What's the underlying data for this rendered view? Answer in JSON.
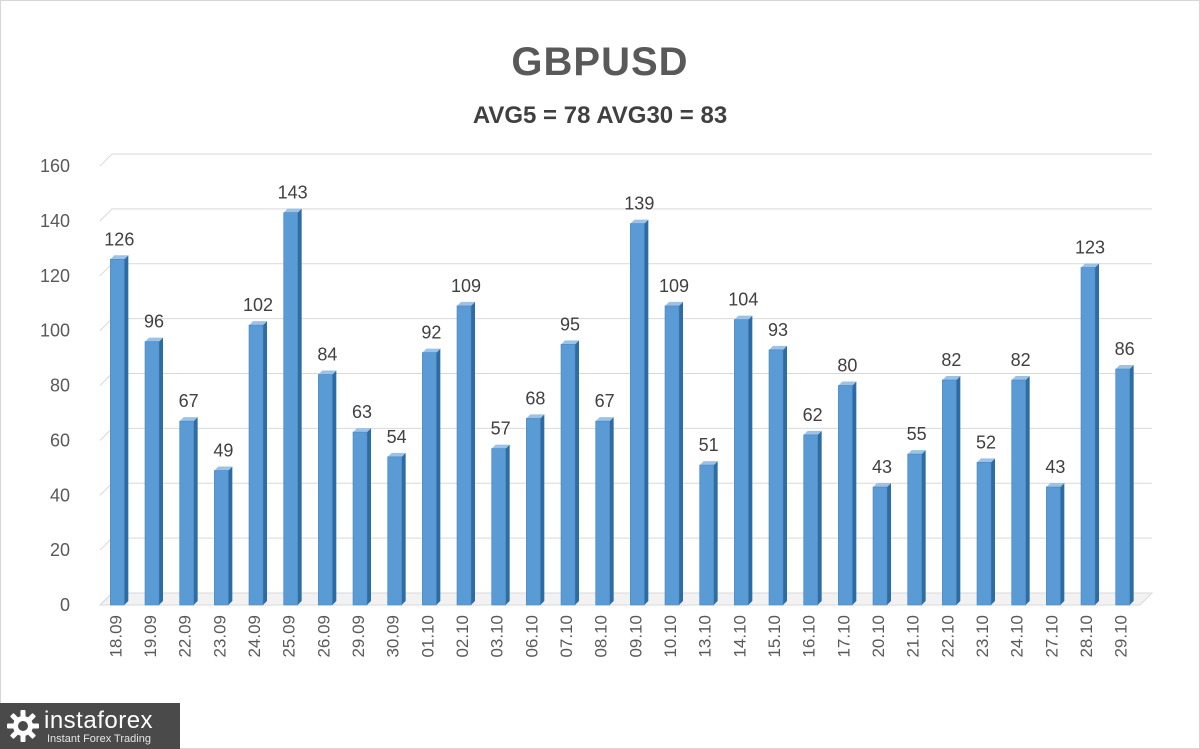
{
  "chart_data": {
    "type": "bar",
    "title": "GBPUSD",
    "subtitle": "AVG5 = 78 AVG30 = 83",
    "categories": [
      "18.09",
      "19.09",
      "22.09",
      "23.09",
      "24.09",
      "25.09",
      "26.09",
      "29.09",
      "30.09",
      "01.10",
      "02.10",
      "03.10",
      "06.10",
      "07.10",
      "08.10",
      "09.10",
      "10.10",
      "13.10",
      "14.10",
      "15.10",
      "16.10",
      "17.10",
      "20.10",
      "21.10",
      "22.10",
      "23.10",
      "24.10",
      "27.10",
      "28.10",
      "29.10"
    ],
    "values": [
      126,
      96,
      67,
      49,
      102,
      143,
      84,
      63,
      54,
      92,
      109,
      57,
      68,
      95,
      67,
      139,
      109,
      51,
      104,
      93,
      62,
      80,
      43,
      55,
      82,
      52,
      82,
      43,
      123,
      86
    ],
    "ylim": [
      0,
      160
    ],
    "yticks": [
      0,
      20,
      40,
      60,
      80,
      100,
      120,
      140,
      160
    ],
    "grid": true,
    "data_labels": true,
    "xlabel": "",
    "ylabel": "",
    "colors": {
      "bar_front": "#5b9bd5",
      "bar_side": "#2e6da4",
      "bar_top": "#9cc3e6",
      "grid": "#d9d9d9",
      "text": "#595959"
    }
  },
  "watermark": {
    "name": "instaforex",
    "tagline": "Instant Forex Trading"
  }
}
